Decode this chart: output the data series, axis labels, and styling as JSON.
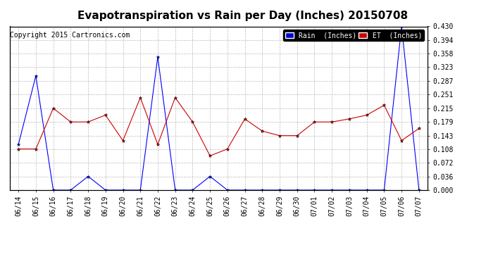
{
  "title": "Evapotranspiration vs Rain per Day (Inches) 20150708",
  "copyright": "Copyright 2015 Cartronics.com",
  "dates": [
    "06/14",
    "06/15",
    "06/16",
    "06/17",
    "06/18",
    "06/19",
    "06/20",
    "06/21",
    "06/22",
    "06/23",
    "06/24",
    "06/25",
    "06/26",
    "06/27",
    "06/28",
    "06/29",
    "06/30",
    "07/01",
    "07/02",
    "07/03",
    "07/04",
    "07/05",
    "07/06",
    "07/07"
  ],
  "rain": [
    0.12,
    0.3,
    0.0,
    0.0,
    0.036,
    0.0,
    0.0,
    0.0,
    0.35,
    0.0,
    0.0,
    0.036,
    0.0,
    0.0,
    0.0,
    0.0,
    0.0,
    0.0,
    0.0,
    0.0,
    0.0,
    0.0,
    0.43,
    0.0
  ],
  "et": [
    0.108,
    0.108,
    0.215,
    0.179,
    0.179,
    0.197,
    0.13,
    0.243,
    0.12,
    0.243,
    0.179,
    0.09,
    0.108,
    0.187,
    0.155,
    0.143,
    0.143,
    0.179,
    0.179,
    0.187,
    0.197,
    0.223,
    0.13,
    0.162
  ],
  "rain_color": "#0000ff",
  "et_color": "#cc0000",
  "background_color": "#ffffff",
  "plot_bg_color": "#ffffff",
  "grid_color": "#bbbbbb",
  "ylim": [
    0.0,
    0.43
  ],
  "yticks": [
    0.0,
    0.036,
    0.072,
    0.108,
    0.143,
    0.179,
    0.215,
    0.251,
    0.287,
    0.323,
    0.358,
    0.394,
    0.43
  ],
  "legend_rain_bg": "#0000cc",
  "legend_et_bg": "#cc0000",
  "title_fontsize": 11,
  "copyright_fontsize": 7,
  "tick_fontsize": 7,
  "marker": "*",
  "marker_size": 3.5
}
